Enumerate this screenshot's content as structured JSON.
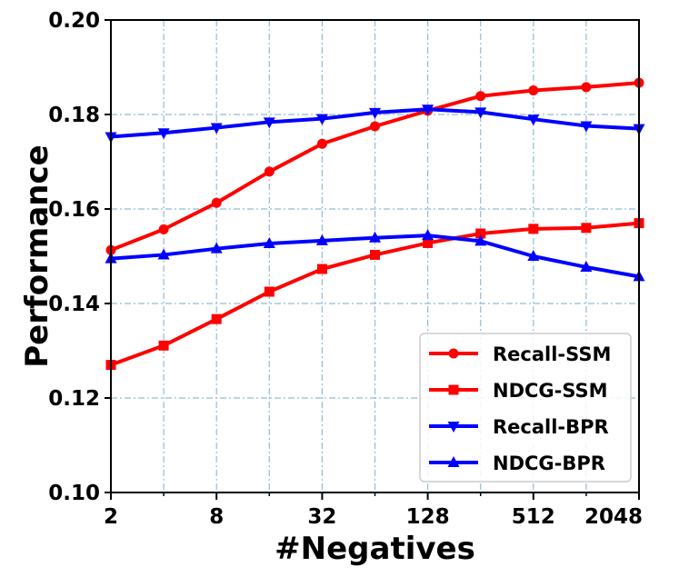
{
  "chart_data": {
    "type": "line",
    "title": "",
    "xlabel": "#Negatives",
    "ylabel": "Performance",
    "x_scale": "log2",
    "x": [
      2,
      4,
      8,
      16,
      32,
      64,
      128,
      256,
      512,
      1024,
      2048
    ],
    "xticks": [
      2,
      8,
      32,
      128,
      512,
      2048
    ],
    "xlim": [
      2,
      2048
    ],
    "ylim": [
      0.1,
      0.2
    ],
    "yticks": [
      "0.10",
      "0.12",
      "0.14",
      "0.16",
      "0.18",
      "0.20"
    ],
    "grid": true,
    "legend_position": "bottom-right",
    "series": [
      {
        "name": "Recall-SSM",
        "color": "#ff0000",
        "marker": "circle",
        "values": [
          0.1513,
          0.1557,
          0.1613,
          0.1679,
          0.1738,
          0.1775,
          0.1808,
          0.1839,
          0.1851,
          0.1858,
          0.1867
        ]
      },
      {
        "name": "NDCG-SSM",
        "color": "#ff0000",
        "marker": "square",
        "values": [
          0.127,
          0.1311,
          0.1367,
          0.1425,
          0.1473,
          0.1503,
          0.1528,
          0.1548,
          0.1558,
          0.156,
          0.157
        ]
      },
      {
        "name": "Recall-BPR",
        "color": "#0000ff",
        "marker": "triangle-down",
        "values": [
          0.1753,
          0.1761,
          0.1772,
          0.1784,
          0.1791,
          0.1804,
          0.1811,
          0.1805,
          0.179,
          0.1776,
          0.177
        ]
      },
      {
        "name": "NDCG-BPR",
        "color": "#0000ff",
        "marker": "triangle-up",
        "values": [
          0.1495,
          0.1503,
          0.1516,
          0.1527,
          0.1533,
          0.1539,
          0.1544,
          0.1532,
          0.15,
          0.1477,
          0.1457
        ]
      }
    ]
  }
}
